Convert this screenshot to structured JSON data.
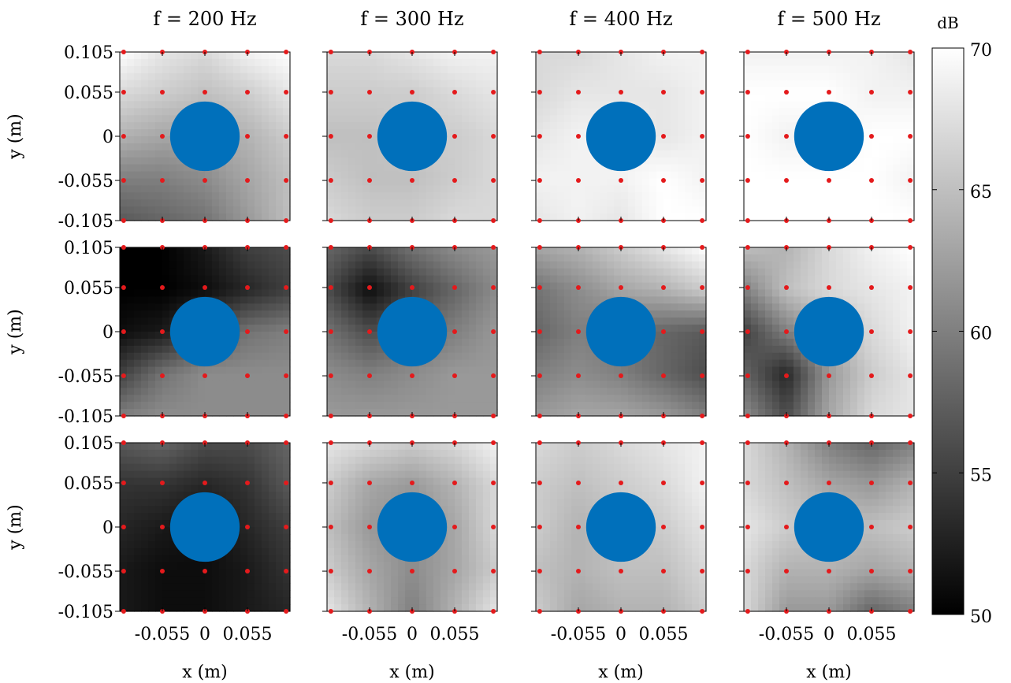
{
  "figure": {
    "colorbar_label": "dB",
    "colorbar_ticks": [
      "70",
      "65",
      "60",
      "55",
      "50"
    ],
    "x_axis_label": "x (m)",
    "y_axis_label": "y (m)",
    "x_tick_labels": [
      "-0.055",
      "0",
      "0.055"
    ],
    "y_tick_labels": [
      "0.105",
      "0.055",
      "0",
      "-0.055",
      "-0.105"
    ],
    "column_titles": [
      "f = 200 Hz",
      "f = 300 Hz",
      "f = 400 Hz",
      "f = 500 Hz"
    ]
  },
  "chart_data": {
    "type": "heatmap",
    "rows": 3,
    "columns": 4,
    "column_frequencies_hz": [
      200,
      300,
      400,
      500
    ],
    "x_ticks": [
      -0.055,
      0,
      0.055
    ],
    "y_ticks": [
      0.105,
      0.055,
      0,
      -0.055,
      -0.105
    ],
    "xlabel": "x (m)",
    "ylabel": "y (m)",
    "xlim": [
      -0.11,
      0.11
    ],
    "ylim": [
      -0.105,
      0.105
    ],
    "colorbar": {
      "label": "dB",
      "min": 50,
      "max": 70,
      "ticks": [
        50,
        55,
        60,
        65,
        70
      ],
      "colormap": "gray"
    },
    "microphone_grid_x": [
      -0.105,
      -0.055,
      0,
      0.055,
      0.105
    ],
    "microphone_grid_y": [
      0.105,
      0.055,
      0,
      -0.055,
      -0.105
    ],
    "microphone_color": "#e41a1c",
    "scatterer": {
      "shape": "circle",
      "center": [
        0,
        0
      ],
      "radius": 0.045,
      "color": "#0070bb"
    },
    "panels": [
      [
        {
          "grid_db": [
            [
              70,
              68,
              67,
              69,
              70
            ],
            [
              67,
              66,
              65,
              66,
              68
            ],
            [
              64,
              63,
              63,
              64,
              66
            ],
            [
              60,
              60,
              61,
              63,
              65
            ],
            [
              57,
              58,
              59,
              62,
              65
            ]
          ]
        },
        {
          "grid_db": [
            [
              67,
              67,
              68,
              69,
              69
            ],
            [
              66,
              66,
              66,
              67,
              68
            ],
            [
              65,
              65,
              66,
              66,
              67
            ],
            [
              66,
              65,
              65,
              66,
              67
            ],
            [
              67,
              66,
              66,
              67,
              67
            ]
          ]
        },
        {
          "grid_db": [
            [
              67,
              67,
              68,
              69,
              69
            ],
            [
              67,
              68,
              68,
              68,
              69
            ],
            [
              68,
              69,
              69,
              68,
              69
            ],
            [
              69,
              69,
              69,
              70,
              69
            ],
            [
              68,
              69,
              68,
              70,
              70
            ]
          ]
        },
        {
          "grid_db": [
            [
              69,
              69,
              69,
              69,
              68
            ],
            [
              70,
              70,
              70,
              69,
              69
            ],
            [
              70,
              69,
              69,
              70,
              70
            ],
            [
              70,
              70,
              70,
              70,
              69
            ],
            [
              70,
              70,
              70,
              70,
              70
            ]
          ]
        }
      ],
      [
        {
          "grid_db": [
            [
              50,
              50,
              52,
              55,
              56
            ],
            [
              50,
              50,
              51,
              53,
              55
            ],
            [
              51,
              52,
              56,
              59,
              60
            ],
            [
              55,
              59,
              61,
              61,
              61
            ],
            [
              60,
              61,
              61,
              61,
              61
            ]
          ]
        },
        {
          "grid_db": [
            [
              58,
              56,
              59,
              61,
              62
            ],
            [
              56,
              51,
              55,
              58,
              61
            ],
            [
              59,
              56,
              58,
              60,
              62
            ],
            [
              61,
              60,
              61,
              62,
              62
            ],
            [
              62,
              62,
              62,
              62,
              62
            ]
          ]
        },
        {
          "grid_db": [
            [
              63,
              64,
              66,
              68,
              70
            ],
            [
              59,
              61,
              63,
              64,
              66
            ],
            [
              58,
              60,
              59,
              58,
              57
            ],
            [
              60,
              61,
              60,
              58,
              56
            ],
            [
              62,
              63,
              63,
              62,
              60
            ]
          ]
        },
        {
          "grid_db": [
            [
              65,
              64,
              67,
              69,
              70
            ],
            [
              60,
              65,
              67,
              68,
              69
            ],
            [
              55,
              60,
              64,
              67,
              69
            ],
            [
              58,
              53,
              62,
              66,
              68
            ],
            [
              61,
              56,
              63,
              67,
              68
            ]
          ]
        }
      ],
      [
        {
          "grid_db": [
            [
              57,
              58,
              56,
              56,
              58
            ],
            [
              54,
              54,
              53,
              54,
              57
            ],
            [
              53,
              52,
              51,
              53,
              55
            ],
            [
              52,
              51,
              51,
              52,
              54
            ],
            [
              52,
              51,
              51,
              52,
              53
            ]
          ]
        },
        {
          "grid_db": [
            [
              68,
              67,
              66,
              67,
              69
            ],
            [
              66,
              63,
              62,
              64,
              67
            ],
            [
              65,
              62,
              61,
              63,
              67
            ],
            [
              66,
              63,
              61,
              63,
              66
            ],
            [
              68,
              64,
              60,
              64,
              68
            ]
          ]
        },
        {
          "grid_db": [
            [
              67,
              66,
              67,
              68,
              69
            ],
            [
              66,
              65,
              66,
              67,
              69
            ],
            [
              66,
              64,
              65,
              66,
              68
            ],
            [
              65,
              64,
              65,
              65,
              67
            ],
            [
              66,
              63,
              64,
              64,
              66
            ]
          ]
        },
        {
          "grid_db": [
            [
              67,
              64,
              60,
              58,
              60
            ],
            [
              67,
              65,
              63,
              62,
              64
            ],
            [
              68,
              66,
              65,
              65,
              66
            ],
            [
              67,
              64,
              64,
              63,
              64
            ],
            [
              67,
              62,
              62,
              58,
              60
            ]
          ]
        }
      ]
    ]
  }
}
